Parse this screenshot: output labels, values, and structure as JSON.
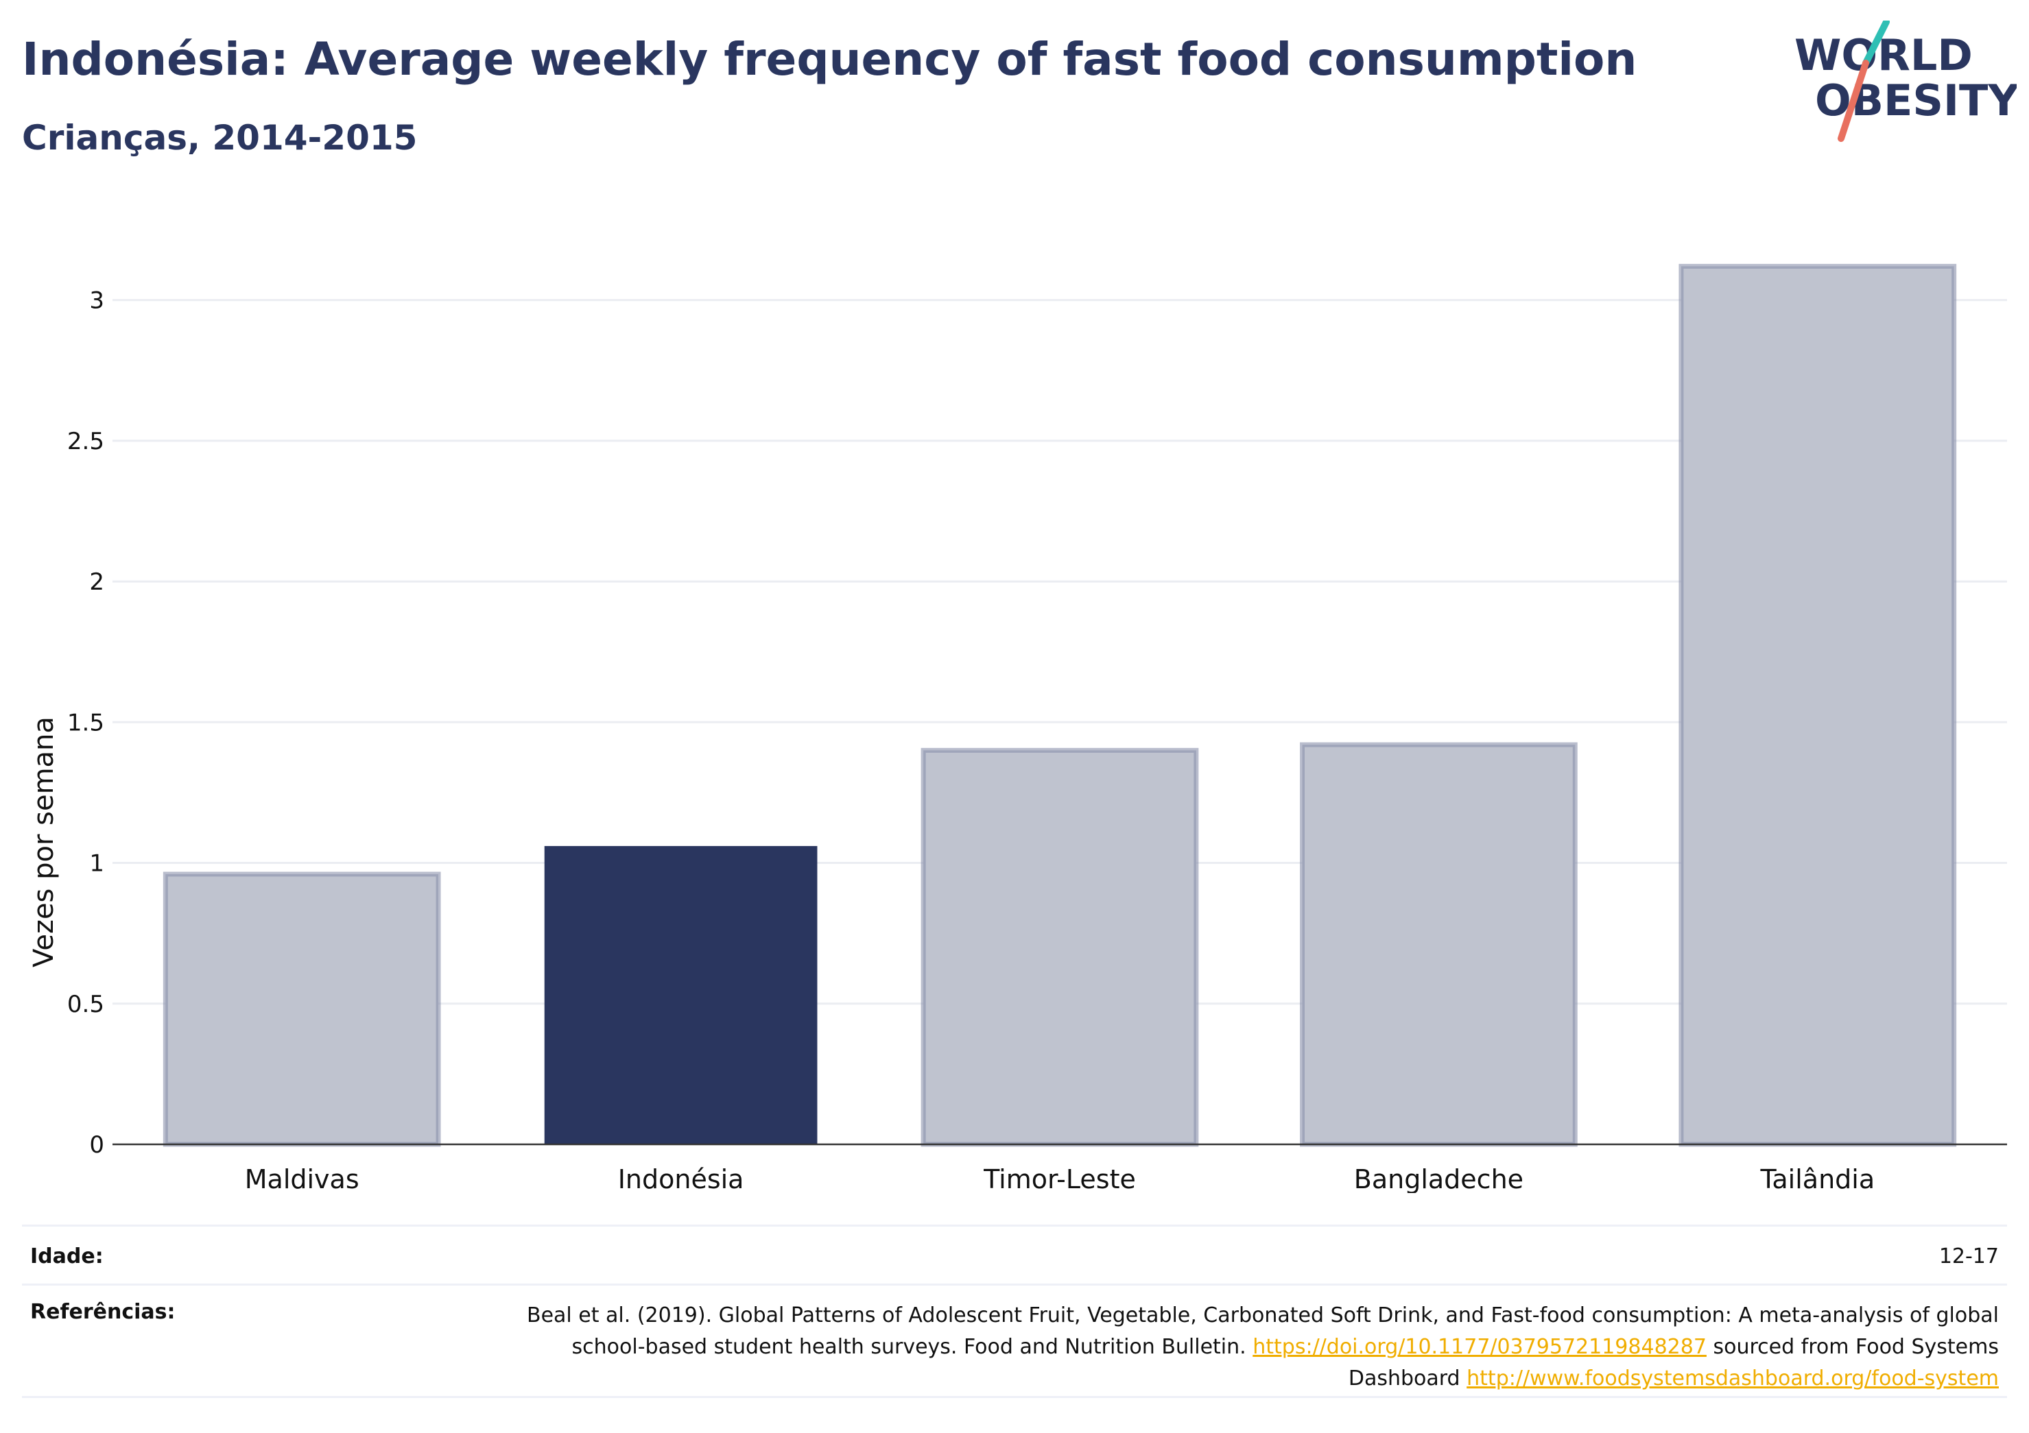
{
  "header": {
    "title": "Indonésia: Average weekly frequency of fast food consumption",
    "subtitle": "Crianças, 2014-2015"
  },
  "logo": {
    "line1": "WORLD",
    "line2": "OBESITY",
    "accent_teal": "#2ebfb4",
    "accent_coral": "#e8705f"
  },
  "chart_data": {
    "type": "bar",
    "title": "Indonésia: Average weekly frequency of fast food consumption",
    "subtitle": "Crianças, 2014-2015",
    "categories": [
      "Maldivas",
      "Indonésia",
      "Timor-Leste",
      "Bangladeche",
      "Tailândia"
    ],
    "values": [
      0.96,
      1.06,
      1.4,
      1.42,
      3.12
    ],
    "highlight": "Indonésia",
    "ylabel": "Vezes por semana",
    "xlabel": "",
    "ylim": [
      0,
      3.25
    ],
    "yticks": [
      0,
      0.5,
      1,
      1.5,
      2,
      2.5,
      3
    ],
    "ytick_labels": [
      "0",
      "0.5",
      "1",
      "1.5",
      "2",
      "2.5",
      "3"
    ],
    "grid": true,
    "colors": {
      "highlight": "#2a365f",
      "other_fill": "#bfc3cf",
      "other_edge": "#8a91ab"
    }
  },
  "footer": {
    "age_label": "Idade:",
    "age_value": "12-17",
    "refs_label": "Referências:",
    "refs_text1": "Beal et al. (2019). Global Patterns of Adolescent Fruit, Vegetable, Carbonated Soft Drink, and Fast-food consumption: A meta-analysis of global school-based student health surveys. Food and Nutrition Bulletin.",
    "refs_link1": "https://doi.org/10.1177/0379572119848287",
    "refs_text2": "sourced from Food Systems Dashboard",
    "refs_link2": "http://www.foodsystemsdashboard.org/food-system"
  }
}
